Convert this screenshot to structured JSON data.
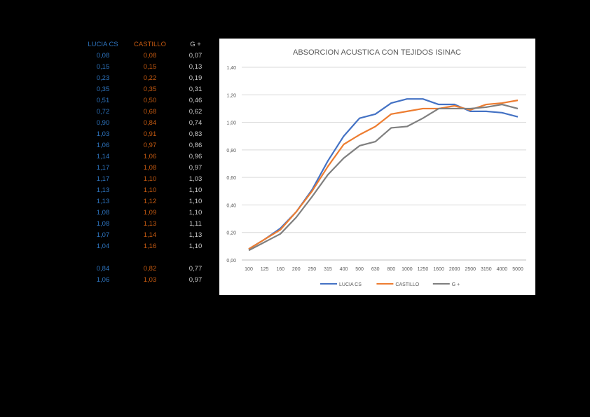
{
  "table": {
    "headers": [
      "LUCIA CS",
      "CASTILLO",
      "G +"
    ],
    "columns": [
      [
        "0,08",
        "0,15",
        "0,23",
        "0,35",
        "0,51",
        "0,72",
        "0,90",
        "1,03",
        "1,06",
        "1,14",
        "1,17",
        "1,17",
        "1,13",
        "1,13",
        "1,08",
        "1,08",
        "1,07",
        "1,04",
        "",
        "0,84",
        "1,06"
      ],
      [
        "0,08",
        "0,15",
        "0,22",
        "0,35",
        "0,50",
        "0,68",
        "0,84",
        "0,91",
        "0,97",
        "1,06",
        "1,08",
        "1,10",
        "1,10",
        "1,12",
        "1,09",
        "1,13",
        "1,14",
        "1,16",
        "",
        "0,82",
        "1,03"
      ],
      [
        "0,07",
        "0,13",
        "0,19",
        "0,31",
        "0,46",
        "0,62",
        "0,74",
        "0,83",
        "0,86",
        "0,96",
        "0,97",
        "1,03",
        "1,10",
        "1,10",
        "1,10",
        "1,11",
        "1,13",
        "1,10",
        "",
        "0,77",
        "0,97"
      ]
    ]
  },
  "chart_data": {
    "type": "line",
    "title": "ABSORCION ACUSTICA CON TEJIDOS ISINAC",
    "categories": [
      "100",
      "125",
      "160",
      "200",
      "250",
      "315",
      "400",
      "500",
      "630",
      "800",
      "1000",
      "1250",
      "1600",
      "2000",
      "2500",
      "3150",
      "4000",
      "5000"
    ],
    "yticks": [
      "0,00",
      "0,20",
      "0,40",
      "0,60",
      "0,80",
      "1,00",
      "1,20",
      "1,40"
    ],
    "ylim": [
      0,
      1.4
    ],
    "legend_position": "bottom",
    "series": [
      {
        "name": "LUCIA CS",
        "color": "#4472c4",
        "values": [
          0.08,
          0.15,
          0.23,
          0.35,
          0.51,
          0.72,
          0.9,
          1.03,
          1.06,
          1.14,
          1.17,
          1.17,
          1.13,
          1.13,
          1.08,
          1.08,
          1.07,
          1.04
        ]
      },
      {
        "name": "CASTILLO",
        "color": "#ed7d31",
        "values": [
          0.08,
          0.15,
          0.22,
          0.35,
          0.5,
          0.68,
          0.84,
          0.91,
          0.97,
          1.06,
          1.08,
          1.1,
          1.1,
          1.12,
          1.09,
          1.13,
          1.14,
          1.16
        ]
      },
      {
        "name": "G +",
        "color": "#7f7f7f",
        "values": [
          0.07,
          0.13,
          0.19,
          0.31,
          0.46,
          0.62,
          0.74,
          0.83,
          0.86,
          0.96,
          0.97,
          1.03,
          1.1,
          1.1,
          1.1,
          1.11,
          1.13,
          1.1
        ]
      }
    ]
  }
}
